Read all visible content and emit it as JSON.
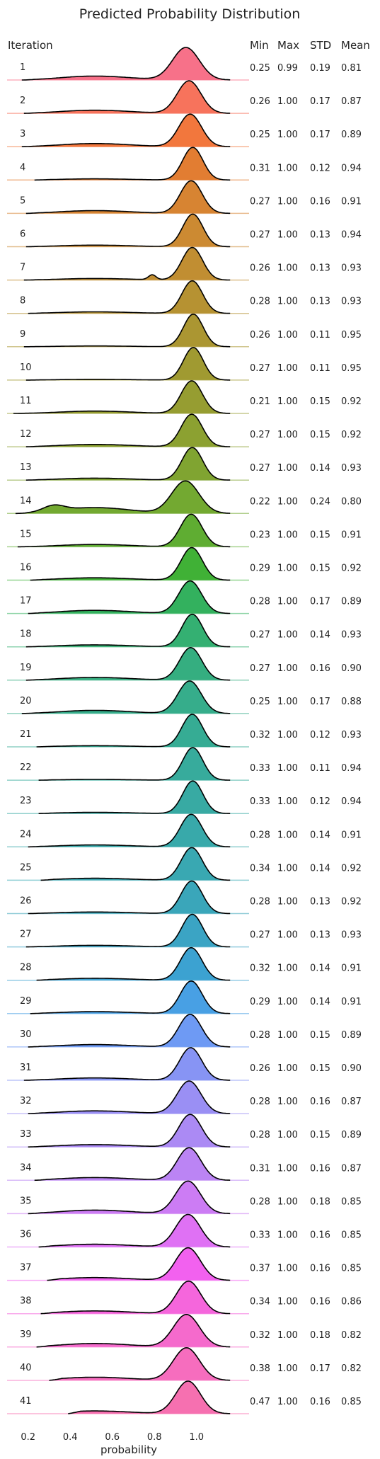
{
  "chart_data": {
    "type": "area",
    "title": "Predicted Probability Distribution",
    "xlabel": "probability",
    "xlim": [
      0.1,
      1.25
    ],
    "x_ticks": [
      "0.2",
      "0.4",
      "0.6",
      "0.8",
      "1.0"
    ],
    "row_header": "Iteration",
    "stat_headers": [
      "Min",
      "Max",
      "STD",
      "Mean"
    ],
    "grid": false,
    "rows": [
      {
        "label": "1",
        "min": "0.25",
        "max": "0.99",
        "std": "0.19",
        "mean": "0.81",
        "color": "#f77189"
      },
      {
        "label": "2",
        "min": "0.26",
        "max": "1.00",
        "std": "0.17",
        "mean": "0.87",
        "color": "#f7735c"
      },
      {
        "label": "3",
        "min": "0.25",
        "max": "1.00",
        "std": "0.17",
        "mean": "0.89",
        "color": "#f2773d"
      },
      {
        "label": "4",
        "min": "0.31",
        "max": "1.00",
        "std": "0.12",
        "mean": "0.94",
        "color": "#e27d32"
      },
      {
        "label": "5",
        "min": "0.27",
        "max": "1.00",
        "std": "0.16",
        "mean": "0.91",
        "color": "#d78432"
      },
      {
        "label": "6",
        "min": "0.27",
        "max": "1.00",
        "std": "0.13",
        "mean": "0.94",
        "color": "#cc8a32"
      },
      {
        "label": "7",
        "min": "0.26",
        "max": "1.00",
        "std": "0.13",
        "mean": "0.93",
        "color": "#c18e32"
      },
      {
        "label": "8",
        "min": "0.28",
        "max": "1.00",
        "std": "0.13",
        "mean": "0.93",
        "color": "#b69232"
      },
      {
        "label": "9",
        "min": "0.26",
        "max": "1.00",
        "std": "0.11",
        "mean": "0.95",
        "color": "#ab9632"
      },
      {
        "label": "10",
        "min": "0.27",
        "max": "1.00",
        "std": "0.11",
        "mean": "0.95",
        "color": "#a09a31"
      },
      {
        "label": "11",
        "min": "0.21",
        "max": "1.00",
        "std": "0.15",
        "mean": "0.92",
        "color": "#969d31"
      },
      {
        "label": "12",
        "min": "0.27",
        "max": "1.00",
        "std": "0.15",
        "mean": "0.92",
        "color": "#8ca131"
      },
      {
        "label": "13",
        "min": "0.27",
        "max": "1.00",
        "std": "0.14",
        "mean": "0.93",
        "color": "#80a431"
      },
      {
        "label": "14",
        "min": "0.22",
        "max": "1.00",
        "std": "0.24",
        "mean": "0.80",
        "color": "#73a931"
      },
      {
        "label": "15",
        "min": "0.23",
        "max": "1.00",
        "std": "0.15",
        "mean": "0.91",
        "color": "#5fad32"
      },
      {
        "label": "16",
        "min": "0.29",
        "max": "1.00",
        "std": "0.15",
        "mean": "0.92",
        "color": "#40b136"
      },
      {
        "label": "17",
        "min": "0.28",
        "max": "1.00",
        "std": "0.17",
        "mean": "0.89",
        "color": "#33b15e"
      },
      {
        "label": "18",
        "min": "0.27",
        "max": "1.00",
        "std": "0.14",
        "mean": "0.93",
        "color": "#34b072"
      },
      {
        "label": "19",
        "min": "0.27",
        "max": "1.00",
        "std": "0.16",
        "mean": "0.90",
        "color": "#35ae80"
      },
      {
        "label": "20",
        "min": "0.25",
        "max": "1.00",
        "std": "0.17",
        "mean": "0.88",
        "color": "#36ad8b"
      },
      {
        "label": "21",
        "min": "0.32",
        "max": "1.00",
        "std": "0.12",
        "mean": "0.93",
        "color": "#36ac94"
      },
      {
        "label": "22",
        "min": "0.33",
        "max": "1.00",
        "std": "0.11",
        "mean": "0.94",
        "color": "#37ab9c"
      },
      {
        "label": "23",
        "min": "0.33",
        "max": "1.00",
        "std": "0.12",
        "mean": "0.94",
        "color": "#38aaa3"
      },
      {
        "label": "24",
        "min": "0.28",
        "max": "1.00",
        "std": "0.14",
        "mean": "0.91",
        "color": "#38a9aa"
      },
      {
        "label": "25",
        "min": "0.34",
        "max": "1.00",
        "std": "0.14",
        "mean": "0.92",
        "color": "#39a8b2"
      },
      {
        "label": "26",
        "min": "0.28",
        "max": "1.00",
        "std": "0.13",
        "mean": "0.92",
        "color": "#3aa6ba"
      },
      {
        "label": "27",
        "min": "0.27",
        "max": "1.00",
        "std": "0.13",
        "mean": "0.93",
        "color": "#3ba4c4"
      },
      {
        "label": "28",
        "min": "0.32",
        "max": "1.00",
        "std": "0.14",
        "mean": "0.91",
        "color": "#3ca2d1"
      },
      {
        "label": "29",
        "min": "0.29",
        "max": "1.00",
        "std": "0.14",
        "mean": "0.91",
        "color": "#48a0e4"
      },
      {
        "label": "30",
        "min": "0.28",
        "max": "1.00",
        "std": "0.15",
        "mean": "0.89",
        "color": "#6e9af4"
      },
      {
        "label": "31",
        "min": "0.26",
        "max": "1.00",
        "std": "0.15",
        "mean": "0.90",
        "color": "#8794f4"
      },
      {
        "label": "32",
        "min": "0.28",
        "max": "1.00",
        "std": "0.16",
        "mean": "0.87",
        "color": "#9a8ff4"
      },
      {
        "label": "33",
        "min": "0.28",
        "max": "1.00",
        "std": "0.15",
        "mean": "0.89",
        "color": "#ab8af4"
      },
      {
        "label": "34",
        "min": "0.31",
        "max": "1.00",
        "std": "0.16",
        "mean": "0.87",
        "color": "#bb84f4"
      },
      {
        "label": "35",
        "min": "0.28",
        "max": "1.00",
        "std": "0.18",
        "mean": "0.85",
        "color": "#cc7cf4"
      },
      {
        "label": "36",
        "min": "0.33",
        "max": "1.00",
        "std": "0.16",
        "mean": "0.85",
        "color": "#df71f4"
      },
      {
        "label": "37",
        "min": "0.37",
        "max": "1.00",
        "std": "0.16",
        "mean": "0.85",
        "color": "#f261ef"
      },
      {
        "label": "38",
        "min": "0.34",
        "max": "1.00",
        "std": "0.16",
        "mean": "0.86",
        "color": "#f566dc"
      },
      {
        "label": "39",
        "min": "0.32",
        "max": "1.00",
        "std": "0.18",
        "mean": "0.82",
        "color": "#f56acc"
      },
      {
        "label": "40",
        "min": "0.38",
        "max": "1.00",
        "std": "0.17",
        "mean": "0.82",
        "color": "#f66dbe"
      },
      {
        "label": "41",
        "min": "0.47",
        "max": "1.00",
        "std": "0.16",
        "mean": "0.85",
        "color": "#f670b0"
      }
    ]
  }
}
